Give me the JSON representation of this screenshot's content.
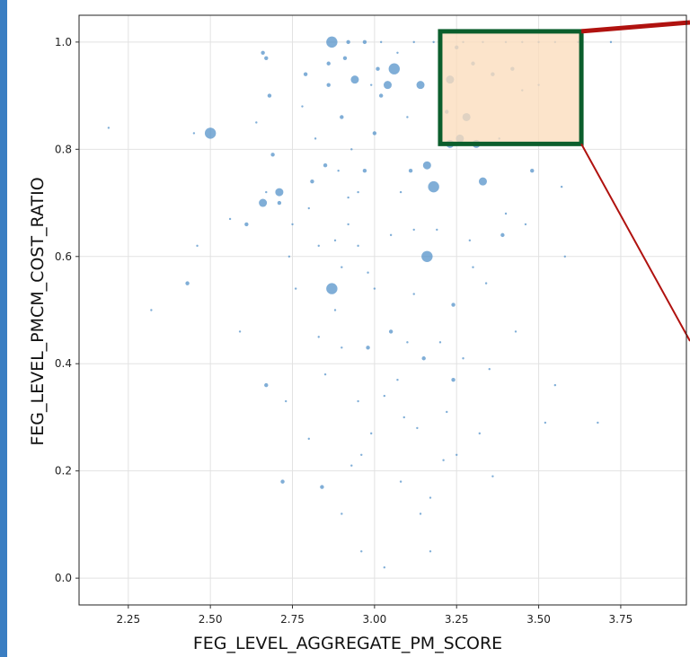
{
  "colors": {
    "point": "#4f8fc7",
    "grid": "#e2e2e2",
    "highlight_fill": "#fbdcbd",
    "highlight_stroke": "#0b5e2c",
    "pointer_line": "#b0120f",
    "outer_border": "#3a7ec2"
  },
  "chart_data": {
    "type": "scatter",
    "xlabel": "FEG_LEVEL_AGGREGATE_PM_SCORE",
    "ylabel": "FEG_LEVEL_PMCM_COST_RATIO",
    "xlim": [
      2.1,
      3.95
    ],
    "ylim": [
      -0.05,
      1.05
    ],
    "x_ticks": [
      "2.25",
      "2.50",
      "2.75",
      "3.00",
      "3.25",
      "3.50",
      "3.75"
    ],
    "y_ticks": [
      "0.0",
      "0.2",
      "0.4",
      "0.6",
      "0.8",
      "1.0"
    ],
    "grid": true,
    "highlight_region": {
      "x": [
        3.2,
        3.63
      ],
      "y": [
        0.81,
        1.02
      ]
    },
    "points": [
      {
        "x": 2.19,
        "y": 0.84,
        "s": 1
      },
      {
        "x": 2.32,
        "y": 0.5,
        "s": 1
      },
      {
        "x": 2.43,
        "y": 0.55,
        "s": 2
      },
      {
        "x": 2.45,
        "y": 0.83,
        "s": 1
      },
      {
        "x": 2.46,
        "y": 0.62,
        "s": 1
      },
      {
        "x": 2.5,
        "y": 0.83,
        "s": 4
      },
      {
        "x": 2.56,
        "y": 0.67,
        "s": 1
      },
      {
        "x": 2.59,
        "y": 0.46,
        "s": 1
      },
      {
        "x": 2.61,
        "y": 0.66,
        "s": 2
      },
      {
        "x": 2.64,
        "y": 0.85,
        "s": 1
      },
      {
        "x": 2.66,
        "y": 0.7,
        "s": 3
      },
      {
        "x": 2.66,
        "y": 0.98,
        "s": 2
      },
      {
        "x": 2.67,
        "y": 0.97,
        "s": 2
      },
      {
        "x": 2.67,
        "y": 0.36,
        "s": 2
      },
      {
        "x": 2.67,
        "y": 0.72,
        "s": 1
      },
      {
        "x": 2.68,
        "y": 0.9,
        "s": 2
      },
      {
        "x": 2.69,
        "y": 0.79,
        "s": 2
      },
      {
        "x": 2.71,
        "y": 0.72,
        "s": 3
      },
      {
        "x": 2.71,
        "y": 0.7,
        "s": 2
      },
      {
        "x": 2.72,
        "y": 0.18,
        "s": 2
      },
      {
        "x": 2.73,
        "y": 0.33,
        "s": 1
      },
      {
        "x": 2.74,
        "y": 0.6,
        "s": 1
      },
      {
        "x": 2.75,
        "y": 0.66,
        "s": 1
      },
      {
        "x": 2.76,
        "y": 0.54,
        "s": 1
      },
      {
        "x": 2.78,
        "y": 0.88,
        "s": 1
      },
      {
        "x": 2.79,
        "y": 0.94,
        "s": 2
      },
      {
        "x": 2.8,
        "y": 0.69,
        "s": 1
      },
      {
        "x": 2.81,
        "y": 0.74,
        "s": 2
      },
      {
        "x": 2.82,
        "y": 0.82,
        "s": 1
      },
      {
        "x": 2.83,
        "y": 0.62,
        "s": 1
      },
      {
        "x": 2.84,
        "y": 0.17,
        "s": 2
      },
      {
        "x": 2.85,
        "y": 0.77,
        "s": 2
      },
      {
        "x": 2.86,
        "y": 0.92,
        "s": 2
      },
      {
        "x": 2.86,
        "y": 0.96,
        "s": 2
      },
      {
        "x": 2.87,
        "y": 1.0,
        "s": 4
      },
      {
        "x": 2.87,
        "y": 0.54,
        "s": 4
      },
      {
        "x": 2.88,
        "y": 0.5,
        "s": 1
      },
      {
        "x": 2.88,
        "y": 0.63,
        "s": 1
      },
      {
        "x": 2.89,
        "y": 0.76,
        "s": 1
      },
      {
        "x": 2.9,
        "y": 0.86,
        "s": 2
      },
      {
        "x": 2.9,
        "y": 0.43,
        "s": 1
      },
      {
        "x": 2.91,
        "y": 0.97,
        "s": 2
      },
      {
        "x": 2.92,
        "y": 0.71,
        "s": 1
      },
      {
        "x": 2.93,
        "y": 0.8,
        "s": 1
      },
      {
        "x": 2.94,
        "y": 0.93,
        "s": 3
      },
      {
        "x": 2.95,
        "y": 0.72,
        "s": 1
      },
      {
        "x": 2.95,
        "y": 0.62,
        "s": 1
      },
      {
        "x": 2.96,
        "y": 0.23,
        "s": 1
      },
      {
        "x": 2.97,
        "y": 0.76,
        "s": 2
      },
      {
        "x": 2.98,
        "y": 0.43,
        "s": 2
      },
      {
        "x": 2.99,
        "y": 0.92,
        "s": 1
      },
      {
        "x": 3.0,
        "y": 0.54,
        "s": 1
      },
      {
        "x": 3.0,
        "y": 0.83,
        "s": 2
      },
      {
        "x": 3.01,
        "y": 0.95,
        "s": 2
      },
      {
        "x": 3.02,
        "y": 0.9,
        "s": 2
      },
      {
        "x": 3.03,
        "y": 0.34,
        "s": 1
      },
      {
        "x": 3.04,
        "y": 0.92,
        "s": 3
      },
      {
        "x": 3.05,
        "y": 0.46,
        "s": 2
      },
      {
        "x": 3.06,
        "y": 0.95,
        "s": 4
      },
      {
        "x": 3.07,
        "y": 0.98,
        "s": 1
      },
      {
        "x": 3.08,
        "y": 0.72,
        "s": 1
      },
      {
        "x": 3.09,
        "y": 0.3,
        "s": 1
      },
      {
        "x": 3.1,
        "y": 0.86,
        "s": 1
      },
      {
        "x": 3.11,
        "y": 0.76,
        "s": 2
      },
      {
        "x": 3.12,
        "y": 0.53,
        "s": 1
      },
      {
        "x": 3.13,
        "y": 0.28,
        "s": 1
      },
      {
        "x": 3.14,
        "y": 0.92,
        "s": 3
      },
      {
        "x": 3.15,
        "y": 0.41,
        "s": 2
      },
      {
        "x": 3.16,
        "y": 0.6,
        "s": 4
      },
      {
        "x": 3.16,
        "y": 0.77,
        "s": 3
      },
      {
        "x": 3.17,
        "y": 0.15,
        "s": 1
      },
      {
        "x": 3.18,
        "y": 0.73,
        "s": 4
      },
      {
        "x": 3.19,
        "y": 0.65,
        "s": 1
      },
      {
        "x": 3.2,
        "y": 0.95,
        "s": 1
      },
      {
        "x": 3.21,
        "y": 0.22,
        "s": 1
      },
      {
        "x": 3.22,
        "y": 0.87,
        "s": 2
      },
      {
        "x": 3.23,
        "y": 0.81,
        "s": 3
      },
      {
        "x": 3.23,
        "y": 0.93,
        "s": 3
      },
      {
        "x": 3.24,
        "y": 0.37,
        "s": 2
      },
      {
        "x": 3.24,
        "y": 0.51,
        "s": 2
      },
      {
        "x": 3.25,
        "y": 0.99,
        "s": 2
      },
      {
        "x": 3.26,
        "y": 0.82,
        "s": 3
      },
      {
        "x": 3.27,
        "y": 1.0,
        "s": 1
      },
      {
        "x": 3.28,
        "y": 0.86,
        "s": 3
      },
      {
        "x": 3.29,
        "y": 0.63,
        "s": 1
      },
      {
        "x": 3.3,
        "y": 0.96,
        "s": 2
      },
      {
        "x": 3.31,
        "y": 0.81,
        "s": 3
      },
      {
        "x": 3.32,
        "y": 0.27,
        "s": 1
      },
      {
        "x": 3.33,
        "y": 0.74,
        "s": 3
      },
      {
        "x": 3.34,
        "y": 0.55,
        "s": 1
      },
      {
        "x": 3.36,
        "y": 0.94,
        "s": 2
      },
      {
        "x": 3.38,
        "y": 0.82,
        "s": 1
      },
      {
        "x": 3.39,
        "y": 0.64,
        "s": 2
      },
      {
        "x": 3.4,
        "y": 0.68,
        "s": 1
      },
      {
        "x": 3.42,
        "y": 0.95,
        "s": 2
      },
      {
        "x": 3.43,
        "y": 0.46,
        "s": 1
      },
      {
        "x": 3.45,
        "y": 0.91,
        "s": 1
      },
      {
        "x": 3.46,
        "y": 0.66,
        "s": 1
      },
      {
        "x": 3.48,
        "y": 0.76,
        "s": 2
      },
      {
        "x": 3.5,
        "y": 0.92,
        "s": 1
      },
      {
        "x": 3.51,
        "y": 0.81,
        "s": 1
      },
      {
        "x": 3.52,
        "y": 0.29,
        "s": 1
      },
      {
        "x": 3.55,
        "y": 0.36,
        "s": 1
      },
      {
        "x": 3.57,
        "y": 0.73,
        "s": 1
      },
      {
        "x": 3.58,
        "y": 0.6,
        "s": 1
      },
      {
        "x": 3.62,
        "y": 1.0,
        "s": 1
      },
      {
        "x": 3.68,
        "y": 0.29,
        "s": 1
      },
      {
        "x": 3.72,
        "y": 1.0,
        "s": 1
      },
      {
        "x": 2.92,
        "y": 1.0,
        "s": 2
      },
      {
        "x": 2.97,
        "y": 1.0,
        "s": 2
      },
      {
        "x": 3.02,
        "y": 1.0,
        "s": 1
      },
      {
        "x": 3.12,
        "y": 1.0,
        "s": 1
      },
      {
        "x": 3.18,
        "y": 1.0,
        "s": 1
      },
      {
        "x": 3.33,
        "y": 1.0,
        "s": 1
      },
      {
        "x": 3.4,
        "y": 1.0,
        "s": 1
      },
      {
        "x": 3.45,
        "y": 1.0,
        "s": 1
      },
      {
        "x": 3.5,
        "y": 1.0,
        "s": 1
      },
      {
        "x": 3.55,
        "y": 1.0,
        "s": 1
      },
      {
        "x": 2.96,
        "y": 0.05,
        "s": 1
      },
      {
        "x": 3.03,
        "y": 0.02,
        "s": 1
      },
      {
        "x": 3.17,
        "y": 0.05,
        "s": 1
      },
      {
        "x": 2.9,
        "y": 0.12,
        "s": 1
      },
      {
        "x": 2.93,
        "y": 0.21,
        "s": 1
      },
      {
        "x": 3.08,
        "y": 0.18,
        "s": 1
      },
      {
        "x": 2.95,
        "y": 0.33,
        "s": 1
      },
      {
        "x": 3.1,
        "y": 0.44,
        "s": 1
      },
      {
        "x": 3.27,
        "y": 0.41,
        "s": 1
      },
      {
        "x": 2.98,
        "y": 0.57,
        "s": 1
      },
      {
        "x": 3.05,
        "y": 0.64,
        "s": 1
      },
      {
        "x": 2.85,
        "y": 0.38,
        "s": 1
      },
      {
        "x": 3.22,
        "y": 0.31,
        "s": 1
      },
      {
        "x": 3.36,
        "y": 0.19,
        "s": 1
      },
      {
        "x": 3.14,
        "y": 0.12,
        "s": 1
      },
      {
        "x": 2.8,
        "y": 0.26,
        "s": 1
      },
      {
        "x": 3.3,
        "y": 0.58,
        "s": 1
      },
      {
        "x": 2.92,
        "y": 0.66,
        "s": 1
      },
      {
        "x": 3.07,
        "y": 0.37,
        "s": 1
      },
      {
        "x": 3.2,
        "y": 0.44,
        "s": 1
      },
      {
        "x": 2.99,
        "y": 0.27,
        "s": 1
      },
      {
        "x": 3.25,
        "y": 0.23,
        "s": 1
      },
      {
        "x": 2.9,
        "y": 0.58,
        "s": 1
      },
      {
        "x": 3.12,
        "y": 0.65,
        "s": 1
      },
      {
        "x": 3.35,
        "y": 0.39,
        "s": 1
      },
      {
        "x": 2.83,
        "y": 0.45,
        "s": 1
      }
    ]
  }
}
